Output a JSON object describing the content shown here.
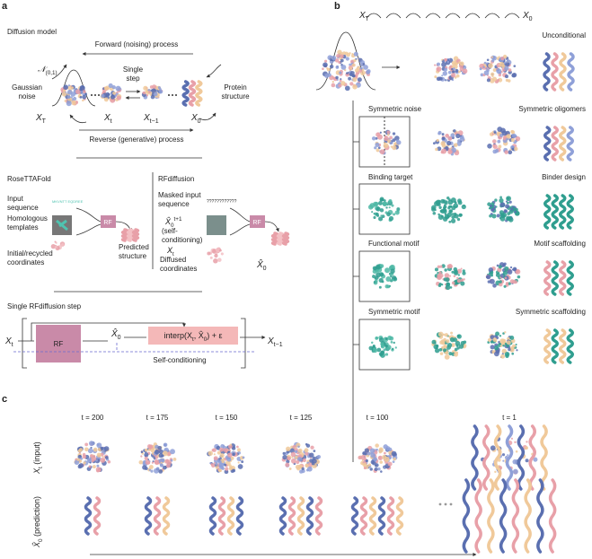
{
  "panel_a": {
    "label": "a",
    "diffusion": {
      "title": "Diffusion model",
      "forward": "Forward (noising) process",
      "reverse": "Reverse (generative) process",
      "normal": [
        {
          "t": "𝒩"
        },
        {
          "sub": "(0,1)"
        }
      ],
      "gaussian_noise": [
        "Gaussian",
        "noise"
      ],
      "single_step": [
        "Single",
        "step"
      ],
      "protein_structure": [
        "Protein",
        "structure"
      ],
      "states": [
        [
          {
            "t": "X"
          },
          {
            "sub": "T"
          }
        ],
        [
          {
            "t": "X"
          },
          {
            "sub": "t"
          }
        ],
        [
          {
            "t": "X"
          },
          {
            "sub": "t−1"
          }
        ],
        [
          {
            "t": "X"
          },
          {
            "sub": "0"
          }
        ]
      ]
    },
    "rosettafold": {
      "title": "RoseTTAFold",
      "input_sequence": [
        "Input",
        "sequence"
      ],
      "sequence": "MKVNTT EQDREE",
      "templates": [
        "Homologous",
        "templates"
      ],
      "coordinates": [
        "Initial/recycled",
        "coordinates"
      ],
      "rf": "RF",
      "predicted": [
        "Predicted",
        "structure"
      ]
    },
    "rfdiffusion": {
      "title": "RFdiffusion",
      "masked": [
        "Masked input",
        "sequence"
      ],
      "masked_sequence": "????????????",
      "self_input": [
        {
          "t": "X̂"
        },
        {
          "sub": "0"
        },
        {
          "sup": "t+1"
        }
      ],
      "self_note": [
        "(self-",
        "conditioning)"
      ],
      "xt": [
        {
          "t": "X"
        },
        {
          "sub": "t"
        }
      ],
      "diffused": [
        "Diffused",
        "coordinates"
      ],
      "rf": "RF",
      "output": [
        {
          "t": "X̂"
        },
        {
          "sub": "0"
        }
      ]
    },
    "step": {
      "title": "Single RFdiffusion step",
      "input": [
        {
          "t": "X"
        },
        {
          "sub": "t"
        }
      ],
      "rf": "RF",
      "x0": [
        {
          "t": "X̂"
        },
        {
          "sub": "0"
        }
      ],
      "interp": [
        {
          "t": "interp(X"
        },
        {
          "sub": "t"
        },
        {
          "t": ", X̂"
        },
        {
          "sub": "0"
        },
        {
          "t": ") + ε"
        }
      ],
      "output": [
        {
          "t": "X"
        },
        {
          "sub": "t−1"
        }
      ],
      "self_conditioning": "Self-conditioning"
    }
  },
  "panel_b": {
    "label": "b",
    "xT": [
      {
        "t": "X"
      },
      {
        "sub": "T"
      }
    ],
    "x0": [
      {
        "t": "X"
      },
      {
        "sub": "0"
      }
    ],
    "unconditional": "Unconditional",
    "rows": [
      {
        "input": "Symmetric noise",
        "output": "Symmetric oligomers"
      },
      {
        "input": "Binding target",
        "output": "Binder design"
      },
      {
        "input": "Functional motif",
        "output": "Motif scaffolding"
      },
      {
        "input": "Symmetric motif",
        "output": "Symmetric scaffolding"
      }
    ]
  },
  "panel_c": {
    "label": "c",
    "timesteps": [
      "t = 200",
      "t = 175",
      "t = 150",
      "t = 125",
      "t = 100",
      "t = 1"
    ],
    "row_input": [
      {
        "t": "X"
      },
      {
        "sub": "t"
      },
      {
        "t": " (input)"
      }
    ],
    "row_prediction": [
      {
        "t": "X̂"
      },
      {
        "sub": "0"
      },
      {
        "t": " (prediction)"
      }
    ]
  }
}
